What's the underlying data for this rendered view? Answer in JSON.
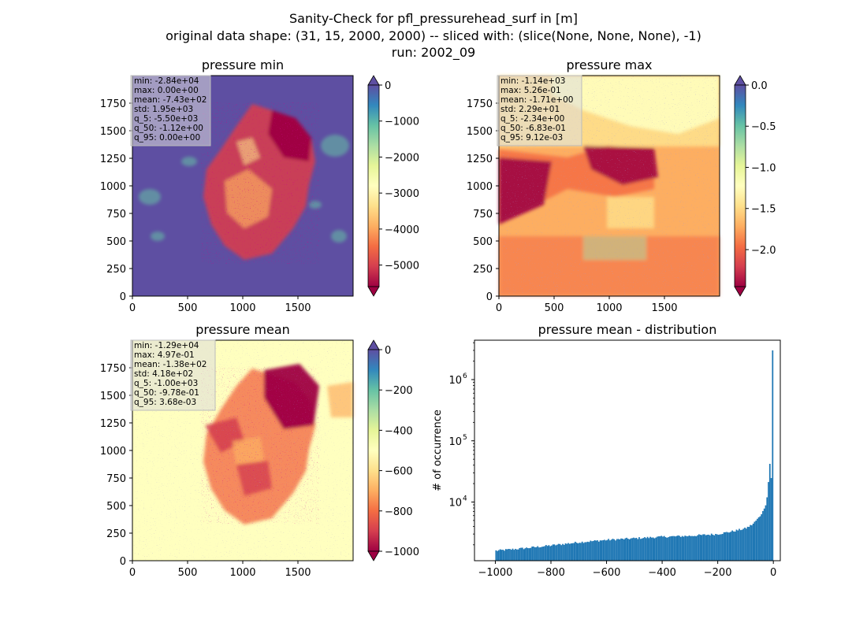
{
  "figure": {
    "title_line1": "Sanity-Check for pfl_pressurehead_surf in [m]",
    "title_line2": "original data shape: (31, 15, 2000, 2000) -- sliced with: (slice(None, None, None), -1)",
    "title_line3": "run: 2002_09"
  },
  "colors": {
    "spectral": [
      "#9e0142",
      "#d53e4f",
      "#f46d43",
      "#fdae61",
      "#fee08b",
      "#ffffbf",
      "#e6f598",
      "#abdda4",
      "#66c2a5",
      "#3288bd",
      "#5e4fa2"
    ],
    "hist_bar": "#1f77b4",
    "under": "#9e0142",
    "over": "#5e4fa2"
  },
  "chart_data": [
    {
      "type": "heatmap",
      "title": "pressure min",
      "xlim": [
        0,
        2000
      ],
      "ylim": [
        0,
        2000
      ],
      "xticks": [
        "0",
        "500",
        "1000",
        "1500"
      ],
      "yticks": [
        "0",
        "250",
        "500",
        "750",
        "1000",
        "1250",
        "1500",
        "1750"
      ],
      "colorbar": {
        "vmin": -5600,
        "vmax": 0,
        "ticks": [
          "0",
          "−1000",
          "−2000",
          "−3000",
          "−4000",
          "−5000"
        ],
        "tick_values": [
          0,
          -1000,
          -2000,
          -3000,
          -4000,
          -5000
        ],
        "extend": "both"
      },
      "stats": [
        "min: -2.84e+04",
        "max: 0.00e+00",
        "mean: -7.43e+02",
        "std: 1.95e+03",
        "q_5: -5.50e+03",
        "q_50: -1.12e+00",
        "q_95: 0.00e+00"
      ]
    },
    {
      "type": "heatmap",
      "title": "pressure max",
      "xlim": [
        0,
        2000
      ],
      "ylim": [
        0,
        2000
      ],
      "xticks": [
        "0",
        "500",
        "1000",
        "1500"
      ],
      "yticks": [
        "0",
        "250",
        "500",
        "750",
        "1000",
        "1250",
        "1500",
        "1750"
      ],
      "colorbar": {
        "vmin": -2.45,
        "vmax": 0,
        "ticks": [
          "0.0",
          "−0.5",
          "−1.0",
          "−1.5",
          "−2.0"
        ],
        "tick_values": [
          0,
          -0.5,
          -1.0,
          -1.5,
          -2.0
        ],
        "extend": "both"
      },
      "stats": [
        "min: -1.14e+03",
        "max: 5.26e-01",
        "mean: -1.71e+00",
        "std: 2.29e+01",
        "q_5: -2.34e+00",
        "q_50: -6.83e-01",
        "q_95: 9.12e-03"
      ]
    },
    {
      "type": "heatmap",
      "title": "pressure mean",
      "xlim": [
        0,
        2000
      ],
      "ylim": [
        0,
        2000
      ],
      "xticks": [
        "0",
        "500",
        "1000",
        "1500"
      ],
      "yticks": [
        "0",
        "250",
        "500",
        "750",
        "1000",
        "1250",
        "1500",
        "1750"
      ],
      "colorbar": {
        "vmin": -1000,
        "vmax": 0,
        "ticks": [
          "0",
          "−200",
          "−400",
          "−600",
          "−800",
          "−1000"
        ],
        "tick_values": [
          0,
          -200,
          -400,
          -600,
          -800,
          -1000
        ],
        "extend": "both"
      },
      "stats": [
        "min: -1.29e+04",
        "max: 4.97e-01",
        "mean: -1.38e+02",
        "std: 4.18e+02",
        "q_5: -1.00e+03",
        "q_50: -9.78e-01",
        "q_95: 3.68e-03"
      ]
    },
    {
      "type": "bar",
      "title": "pressure mean - distribution",
      "ylabel": "# of occurrence",
      "yscale": "log",
      "xlim": [
        -1075,
        25
      ],
      "ylim": [
        1100,
        4400000
      ],
      "xticks": [
        "−1000",
        "−800",
        "−600",
        "−400",
        "−200",
        "0"
      ],
      "xtick_values": [
        -1000,
        -800,
        -600,
        -400,
        -200,
        0
      ],
      "yticks": [
        "10",
        "10",
        "10"
      ],
      "ytick_exponents": [
        "4",
        "5",
        "6"
      ],
      "ytick_values": [
        10000,
        100000,
        1000000
      ],
      "bin_range": [
        -1000,
        0
      ],
      "bin_width": 5,
      "anchors": [
        [
          -1000,
          1600
        ],
        [
          -900,
          1750
        ],
        [
          -800,
          1950
        ],
        [
          -700,
          2200
        ],
        [
          -600,
          2400
        ],
        [
          -500,
          2550
        ],
        [
          -400,
          2700
        ],
        [
          -300,
          2800
        ],
        [
          -200,
          3000
        ],
        [
          -150,
          3300
        ],
        [
          -100,
          3700
        ],
        [
          -75,
          4300
        ],
        [
          -50,
          5700
        ],
        [
          -40,
          6800
        ],
        [
          -30,
          8200
        ],
        [
          -25,
          9500
        ],
        [
          -20,
          15000
        ],
        [
          -15,
          30000
        ],
        [
          -12,
          45000
        ],
        [
          -10,
          28000
        ],
        [
          -7,
          24000
        ],
        [
          -5,
          19000
        ],
        [
          -2,
          26000
        ],
        [
          0,
          3000000
        ]
      ]
    }
  ]
}
